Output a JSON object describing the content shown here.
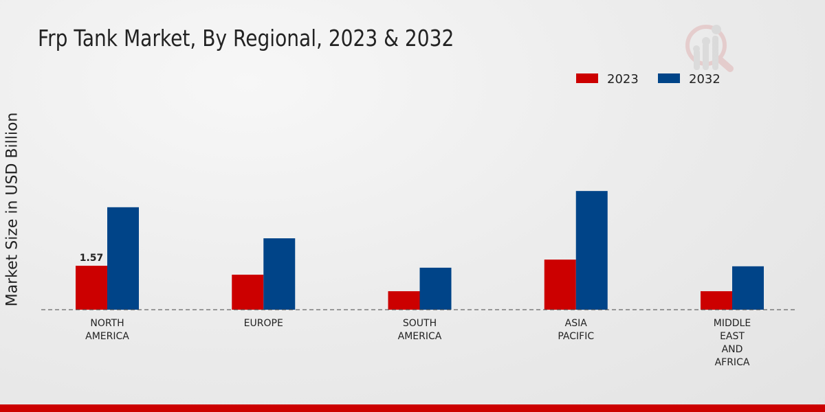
{
  "chart_data": {
    "type": "bar",
    "title": "Frp Tank Market, By Regional, 2023 & 2032",
    "xlabel": "",
    "ylabel": "Market Size in USD Billion",
    "categories": [
      [
        "NORTH",
        "AMERICA"
      ],
      [
        "EUROPE"
      ],
      [
        "SOUTH",
        "AMERICA"
      ],
      [
        "ASIA",
        "PACIFIC"
      ],
      [
        "MIDDLE",
        "EAST",
        "AND",
        "AFRICA"
      ]
    ],
    "series": [
      {
        "name": "2023",
        "color": "#cc0000",
        "values": [
          1.57,
          1.25,
          0.66,
          1.79,
          0.66
        ]
      },
      {
        "name": "2032",
        "color": "#004488",
        "values": [
          3.66,
          2.55,
          1.5,
          4.24,
          1.55
        ]
      }
    ],
    "data_labels": [
      {
        "series": 0,
        "index": 0,
        "text": "1.57"
      }
    ],
    "legend_position": "top-right",
    "grid": false
  }
}
